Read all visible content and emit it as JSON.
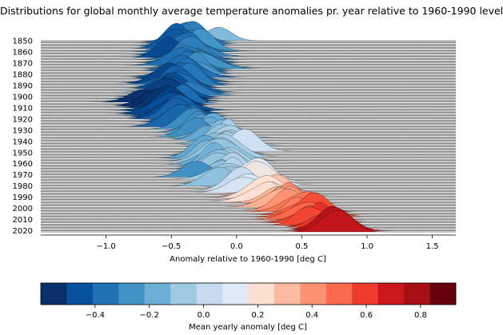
{
  "chart_data": [
    {
      "type": "area",
      "title": "Distributions for global monthly average temperature anomalies pr. year relative to 1960-1990 level",
      "xlabel": "Anomaly relative to 1960-1990 [deg C]",
      "ylabel": "",
      "xlim": [
        -1.5,
        1.68
      ],
      "x_ticks": [
        -1.0,
        -0.5,
        0.0,
        0.5,
        1.0,
        1.5
      ],
      "x_tick_labels": [
        "−1.0",
        "−0.5",
        "0.0",
        "0.5",
        "1.0",
        "1.5"
      ],
      "y_tick_labels": [
        "1850",
        "1860",
        "1870",
        "1880",
        "1890",
        "1900",
        "1910",
        "1920",
        "1930",
        "1940",
        "1950",
        "1960",
        "1970",
        "1980",
        "1990",
        "2000",
        "2010",
        "2020"
      ],
      "year_range": [
        1850,
        2021
      ],
      "grid": false,
      "legend": "none",
      "series": [
        {
          "decade": "1850s",
          "mean_anomaly": -0.38
        },
        {
          "decade": "1860s",
          "mean_anomaly": -0.36
        },
        {
          "decade": "1870s",
          "mean_anomaly": -0.3
        },
        {
          "decade": "1880s",
          "mean_anomaly": -0.46
        },
        {
          "decade": "1890s",
          "mean_anomaly": -0.45
        },
        {
          "decade": "1900s",
          "mean_anomaly": -0.55
        },
        {
          "decade": "1910s",
          "mean_anomaly": -0.52
        },
        {
          "decade": "1920s",
          "mean_anomaly": -0.37
        },
        {
          "decade": "1930s",
          "mean_anomaly": -0.23
        },
        {
          "decade": "1940s",
          "mean_anomaly": -0.05
        },
        {
          "decade": "1950s",
          "mean_anomaly": -0.17
        },
        {
          "decade": "1960s",
          "mean_anomaly": -0.11
        },
        {
          "decade": "1970s",
          "mean_anomaly": -0.08
        },
        {
          "decade": "1980s",
          "mean_anomaly": 0.12
        },
        {
          "decade": "1990s",
          "mean_anomaly": 0.3
        },
        {
          "decade": "2000s",
          "mean_anomaly": 0.55
        },
        {
          "decade": "2010s",
          "mean_anomaly": 0.66
        },
        {
          "decade": "2020s",
          "mean_anomaly": 0.85
        }
      ]
    },
    {
      "type": "heatmap",
      "xlabel": "Mean yearly anomaly [deg C]",
      "xlim": [
        -0.6,
        0.93
      ],
      "x_ticks": [
        -0.4,
        -0.2,
        0.0,
        0.2,
        0.4,
        0.6,
        0.8
      ],
      "x_tick_labels": [
        "−0.4",
        "−0.2",
        "0.0",
        "0.2",
        "0.4",
        "0.6",
        "0.8"
      ],
      "colors": [
        "#08306b",
        "#08519c",
        "#2171b5",
        "#4292c6",
        "#6baed6",
        "#9ecae1",
        "#c6dbef",
        "#deebf7",
        "#fee0d2",
        "#fcbba1",
        "#fc9272",
        "#fb6a4a",
        "#ef3b2c",
        "#cb181d",
        "#a50f15",
        "#67000d"
      ]
    }
  ]
}
